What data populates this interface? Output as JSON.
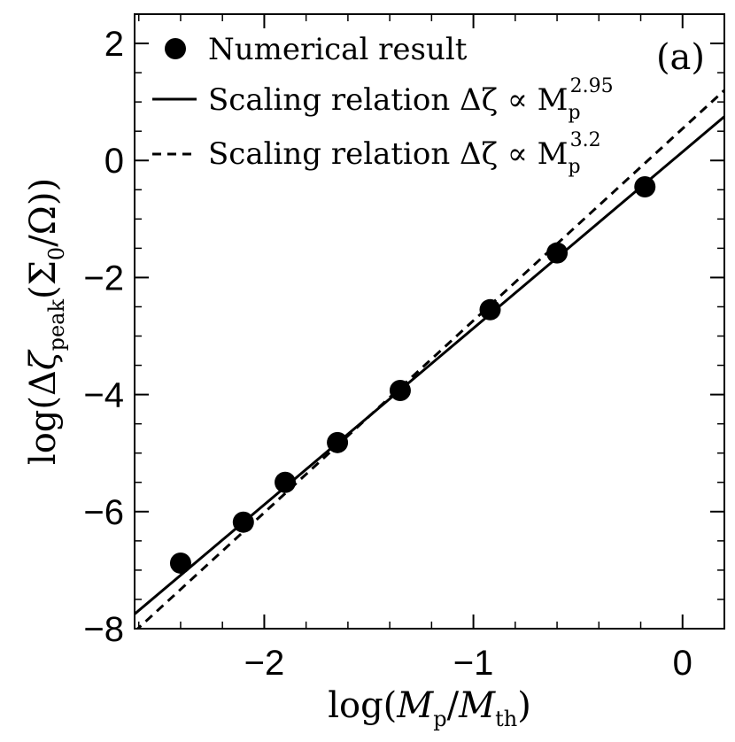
{
  "chart_data": {
    "type": "scatter",
    "title": "",
    "panel_label": "(a)",
    "xlabel": "log(M_p/M_th)",
    "ylabel": "log(Δζ_peak(Σ_0/Ω))",
    "xlim": [
      -2.62,
      0.2
    ],
    "ylim": [
      -8,
      2.5
    ],
    "x_ticks": [
      -2,
      -1,
      0
    ],
    "x_tick_labels": [
      "−2",
      "−1",
      "0"
    ],
    "y_ticks": [
      -8,
      -6,
      -4,
      -2,
      0,
      2
    ],
    "y_tick_labels": [
      "−8",
      "−6",
      "−4",
      "−2",
      "0",
      "2"
    ],
    "series": [
      {
        "name": "Numerical result",
        "kind": "points",
        "x": [
          -2.4,
          -2.1,
          -1.9,
          -1.65,
          -1.35,
          -0.92,
          -0.6,
          -0.18
        ],
        "y": [
          -6.88,
          -6.18,
          -5.5,
          -4.82,
          -3.93,
          -2.55,
          -1.58,
          -0.45
        ]
      },
      {
        "name": "Scaling relation Δζ ∝ M_p^2.95",
        "kind": "line",
        "style": "solid",
        "x": [
          -2.62,
          0.2
        ],
        "y": [
          -7.75,
          0.75
        ]
      },
      {
        "name": "Scaling relation Δζ ∝ M_p^3.2",
        "kind": "line",
        "style": "dashed",
        "x": [
          -2.62,
          0.2
        ],
        "y": [
          -8.05,
          1.2
        ]
      }
    ],
    "legend": {
      "position": "top-left",
      "entries": [
        {
          "prefix": "Numerical result",
          "exponent": "",
          "marker": "circle"
        },
        {
          "prefix": "Scaling relation Δζ ∝ M",
          "sub": "p",
          "exponent": "2.95",
          "marker": "solid-line"
        },
        {
          "prefix": "Scaling relation Δζ ∝ M",
          "sub": "p",
          "exponent": "3.2",
          "marker": "dashed-line"
        }
      ]
    }
  }
}
